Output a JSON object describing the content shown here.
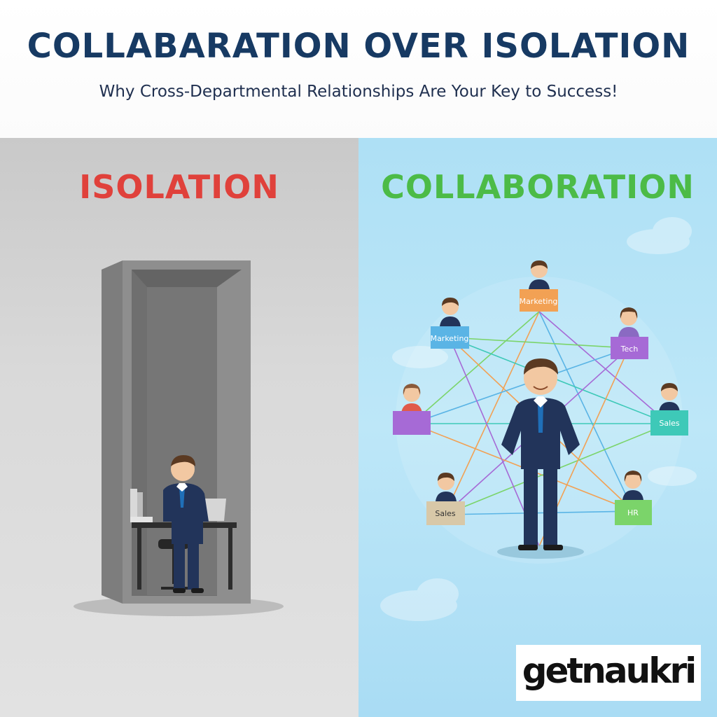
{
  "header": {
    "title": "COLLABARATION OVER ISOLATION",
    "subtitle": "Why Cross-Departmental Relationships Are Your Key to Success!"
  },
  "left_panel": {
    "heading": "ISOLATION",
    "heading_color": "#e0413b"
  },
  "right_panel": {
    "heading": "COLLABORATION",
    "heading_color": "#4cbb47",
    "nodes": [
      {
        "label": "Marketing",
        "color": "#f2a154"
      },
      {
        "label": "Marketing",
        "color": "#5ab4e5"
      },
      {
        "label": "Tech",
        "color": "#a66ad6"
      },
      {
        "label": "",
        "color": "#a66ad6"
      },
      {
        "label": "Sales",
        "color": "#3ec9b8"
      },
      {
        "label": "Sales",
        "color": "#d8c8a8"
      },
      {
        "label": "HR",
        "color": "#7bd46a"
      }
    ]
  },
  "logo": {
    "text": "getnaukri"
  }
}
